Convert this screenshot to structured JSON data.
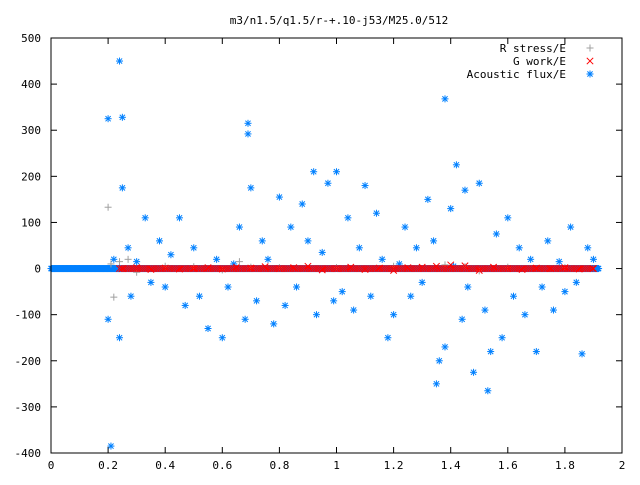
{
  "chart_data": {
    "type": "scatter",
    "title": "m3/n1.5/q1.5/r-+.10-j53/M25.0/512",
    "xlabel": "",
    "ylabel": "",
    "xlim": [
      0,
      2
    ],
    "ylim": [
      -400,
      500
    ],
    "xticks": [
      "0",
      "0.2",
      "0.4",
      "0.6",
      "0.8",
      "1",
      "1.2",
      "1.4",
      "1.6",
      "1.8",
      "2"
    ],
    "yticks": [
      "500",
      "400",
      "300",
      "200",
      "100",
      "0",
      "-100",
      "-200",
      "-300",
      "-400"
    ],
    "grid": false,
    "legend_position": "top-right",
    "series": [
      {
        "name": "R stress/E",
        "marker": "plus",
        "color": "#a0a0a0",
        "x": [
          0.2,
          0.21,
          0.22,
          0.24,
          0.27,
          0.3,
          0.4,
          0.5,
          0.6,
          0.66,
          0.7,
          0.8,
          1.0,
          1.2,
          1.38,
          1.45,
          1.5,
          1.6,
          1.8
        ],
        "y": [
          133,
          10,
          -62,
          15,
          20,
          -8,
          5,
          4,
          -3,
          15,
          3,
          2,
          2,
          5,
          8,
          4,
          -5,
          3,
          2
        ]
      },
      {
        "name": "G work/E",
        "marker": "x",
        "color": "#ff0000",
        "x": [
          0.25,
          0.3,
          0.35,
          0.4,
          0.45,
          0.5,
          0.55,
          0.6,
          0.65,
          0.7,
          0.75,
          0.8,
          0.85,
          0.9,
          0.95,
          1.0,
          1.05,
          1.1,
          1.15,
          1.2,
          1.25,
          1.3,
          1.35,
          1.4,
          1.45,
          1.5,
          1.55,
          1.6,
          1.65,
          1.7,
          1.75,
          1.8,
          1.85,
          1.9
        ],
        "y": [
          0,
          2,
          -2,
          1,
          -1,
          0,
          2,
          -1,
          3,
          1,
          4,
          0,
          2,
          5,
          -3,
          0,
          3,
          -2,
          1,
          -4,
          2,
          3,
          5,
          8,
          6,
          -4,
          3,
          0,
          -2,
          1,
          0,
          2,
          -1,
          0
        ]
      },
      {
        "name": "Acoustic flux/E",
        "marker": "star",
        "color": "#0080ff",
        "x": [
          0.21,
          0.2,
          0.24,
          0.25,
          0.25,
          0.2,
          0.24,
          0.22,
          0.27,
          0.28,
          0.3,
          0.33,
          0.35,
          0.38,
          0.4,
          0.42,
          0.45,
          0.47,
          0.5,
          0.52,
          0.55,
          0.58,
          0.6,
          0.62,
          0.64,
          0.66,
          0.68,
          0.69,
          0.69,
          0.7,
          0.72,
          0.74,
          0.76,
          0.78,
          0.8,
          0.82,
          0.84,
          0.86,
          0.88,
          0.9,
          0.92,
          0.93,
          0.95,
          0.97,
          0.99,
          1.0,
          1.02,
          1.04,
          1.06,
          1.08,
          1.1,
          1.12,
          1.14,
          1.16,
          1.18,
          1.2,
          1.22,
          1.24,
          1.26,
          1.28,
          1.3,
          1.32,
          1.34,
          1.35,
          1.36,
          1.38,
          1.38,
          1.4,
          1.41,
          1.42,
          1.44,
          1.45,
          1.46,
          1.48,
          1.5,
          1.52,
          1.53,
          1.54,
          1.56,
          1.58,
          1.6,
          1.62,
          1.64,
          1.66,
          1.68,
          1.7,
          1.72,
          1.74,
          1.76,
          1.78,
          1.8,
          1.82,
          1.84,
          1.86,
          1.88,
          1.9
        ],
        "y": [
          -385,
          325,
          450,
          328,
          175,
          -110,
          -150,
          20,
          45,
          -60,
          15,
          110,
          -30,
          60,
          -40,
          30,
          110,
          -80,
          45,
          -60,
          -130,
          20,
          -150,
          -40,
          10,
          90,
          -110,
          315,
          292,
          175,
          -70,
          60,
          20,
          -120,
          155,
          -80,
          90,
          -40,
          140,
          60,
          210,
          -100,
          35,
          185,
          -70,
          210,
          -50,
          110,
          -90,
          45,
          180,
          -60,
          120,
          20,
          -150,
          -100,
          10,
          90,
          -60,
          45,
          -30,
          150,
          60,
          -250,
          -200,
          368,
          -170,
          130,
          5,
          225,
          -110,
          170,
          -40,
          -225,
          185,
          -90,
          -265,
          -180,
          75,
          -150,
          110,
          -60,
          45,
          -100,
          20,
          -180,
          -40,
          60,
          -90,
          15,
          -50,
          90,
          -30,
          -185,
          45,
          20
        ]
      }
    ]
  }
}
